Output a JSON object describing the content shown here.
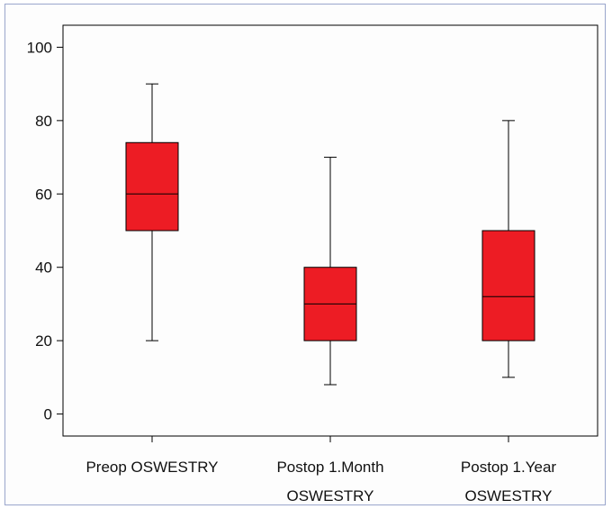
{
  "chart_data": {
    "type": "boxplot",
    "title": "",
    "xlabel": "",
    "ylabel": "",
    "ylim": [
      -6,
      106
    ],
    "yticks": [
      0,
      20,
      40,
      60,
      80,
      100
    ],
    "grid": false,
    "legend": "none",
    "box_color": "#ed1c24",
    "line_color": "#000000",
    "categories": [
      {
        "label_lines": [
          "Preop OSWESTRY"
        ],
        "whisker_low": 20,
        "q1": 50,
        "median": 60,
        "q3": 74,
        "whisker_high": 90
      },
      {
        "label_lines": [
          "Postop 1.Month",
          "OSWESTRY"
        ],
        "whisker_low": 8,
        "q1": 20,
        "median": 30,
        "q3": 40,
        "whisker_high": 70
      },
      {
        "label_lines": [
          "Postop 1.Year",
          "OSWESTRY"
        ],
        "whisker_low": 10,
        "q1": 20,
        "median": 32,
        "q3": 50,
        "whisker_high": 80
      }
    ]
  }
}
